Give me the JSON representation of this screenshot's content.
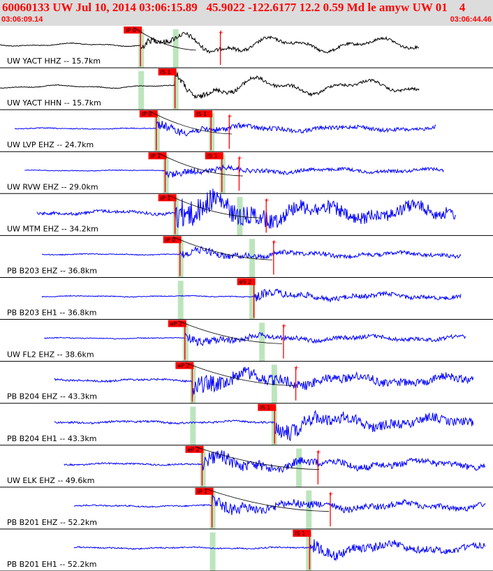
{
  "header": {
    "title": "60060133 UW Jul 10, 2014 03:06:15.89   45.9022 -122.6177 12.2 0.59 Md le amyw UW 01    4",
    "start_time": "03:06:09.14",
    "end_time": "03:06:44.46"
  },
  "colors": {
    "header_bg": "#dcdcdc",
    "header_text": "#ff0000",
    "trace_black": "#000000",
    "trace_blue": "#0000ff",
    "pick_box": "#ff0000",
    "pick_band": "#bde5bd"
  },
  "chart_data": {
    "type": "seismogram",
    "time_range": [
      "03:06:09.14",
      "03:06:44.46"
    ],
    "traces": [
      {
        "label": "UW YACT HHZ -- 15.7km",
        "color": "black",
        "start_frac": 0.0,
        "end_frac": 0.85,
        "amp": 0.35,
        "picks": [
          {
            "label": "iP 0",
            "t": 0.285
          }
        ],
        "bands": [
          0.285,
          0.355
        ],
        "spikes": [
          0.447
        ]
      },
      {
        "label": "UW YACT HHN -- 15.7km",
        "color": "black",
        "start_frac": 0.0,
        "end_frac": 0.85,
        "amp": 0.35,
        "picks": [
          {
            "label": "iS 1",
            "t": 0.355
          }
        ],
        "bands": [
          0.285,
          0.355
        ],
        "spikes": []
      },
      {
        "label": "UW LVP EHZ -- 24.7km",
        "color": "blue",
        "start_frac": 0.03,
        "end_frac": 0.885,
        "amp": 0.12,
        "picks": [
          {
            "label": "iP 0",
            "t": 0.317
          },
          {
            "label": "iS 1",
            "t": 0.428
          }
        ],
        "bands": [
          0.317,
          0.428
        ],
        "spikes": [
          0.465
        ]
      },
      {
        "label": "UW RVW EHZ -- 29.0km",
        "color": "blue",
        "start_frac": 0.05,
        "end_frac": 0.9,
        "amp": 0.1,
        "picks": [
          {
            "label": "iP 1",
            "t": 0.335
          },
          {
            "label": "iS 1",
            "t": 0.45
          }
        ],
        "bands": [
          0.335,
          0.45
        ],
        "spikes": [
          0.485
        ]
      },
      {
        "label": "UW MTM EHZ -- 34.2km",
        "color": "blue",
        "start_frac": 0.075,
        "end_frac": 0.925,
        "amp": 0.4,
        "picks": [
          {
            "label": "iP 1",
            "t": 0.355
          }
        ],
        "bands": [
          0.355,
          0.485
        ],
        "spikes": [
          0.54
        ]
      },
      {
        "label": "PB B203 EHZ -- 36.8km",
        "color": "blue",
        "start_frac": 0.085,
        "end_frac": 0.935,
        "amp": 0.12,
        "picks": [
          {
            "label": "iP 0",
            "t": 0.365
          }
        ],
        "bands": [
          0.365,
          0.51
        ],
        "spikes": [
          0.555
        ]
      },
      {
        "label": "PB B203 EH1 -- 36.8km",
        "color": "blue",
        "start_frac": 0.085,
        "end_frac": 0.935,
        "amp": 0.12,
        "picks": [
          {
            "label": "eS 2",
            "t": 0.515
          }
        ],
        "bands": [
          0.365,
          0.51
        ],
        "spikes": []
      },
      {
        "label": "UW FL2 EHZ -- 38.6km",
        "color": "blue",
        "start_frac": 0.09,
        "end_frac": 0.945,
        "amp": 0.12,
        "picks": [
          {
            "label": "eP 2",
            "t": 0.375
          }
        ],
        "bands": [
          0.375,
          0.53
        ],
        "spikes": [
          0.575
        ]
      },
      {
        "label": "PB B204 EHZ -- 43.3km",
        "color": "blue",
        "start_frac": 0.11,
        "end_frac": 0.96,
        "amp": 0.25,
        "picks": [
          {
            "label": "eP 2",
            "t": 0.39
          }
        ],
        "bands": [
          0.39,
          0.555
        ],
        "spikes": [
          0.6
        ]
      },
      {
        "label": "PB B204 EH1 -- 43.3km",
        "color": "blue",
        "start_frac": 0.11,
        "end_frac": 0.96,
        "amp": 0.25,
        "picks": [
          {
            "label": "iS 1",
            "t": 0.557
          }
        ],
        "bands": [
          0.39,
          0.555
        ],
        "spikes": []
      },
      {
        "label": "UW ELK EHZ -- 49.6km",
        "color": "blue",
        "start_frac": 0.13,
        "end_frac": 0.985,
        "amp": 0.2,
        "picks": [
          {
            "label": "eP 2",
            "t": 0.41
          }
        ],
        "bands": [
          0.41,
          0.605
        ],
        "spikes": [
          0.645
        ]
      },
      {
        "label": "PB B201 EHZ -- 52.2km",
        "color": "blue",
        "start_frac": 0.15,
        "end_frac": 0.985,
        "amp": 0.18,
        "picks": [
          {
            "label": "iP 1",
            "t": 0.43
          }
        ],
        "bands": [
          0.43,
          0.625
        ],
        "spikes": [
          0.67
        ]
      },
      {
        "label": "PB B201 EH1 -- 52.2km",
        "color": "blue",
        "start_frac": 0.15,
        "end_frac": 0.985,
        "amp": 0.18,
        "picks": [
          {
            "label": "iS 1",
            "t": 0.628
          }
        ],
        "bands": [
          0.43,
          0.625
        ],
        "spikes": []
      }
    ]
  }
}
